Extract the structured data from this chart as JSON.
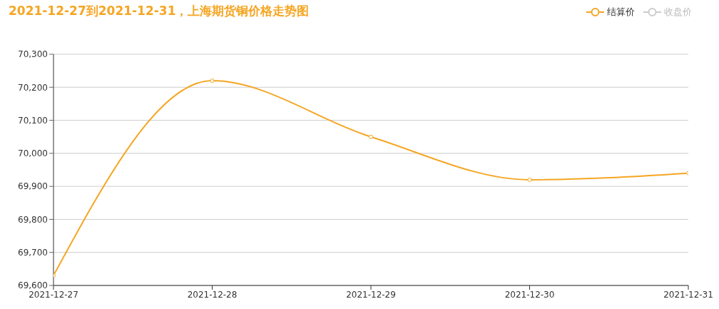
{
  "chart_data": {
    "type": "line",
    "title": "2021-12-27到2021-12-31，上海期货铜价格走势图",
    "categories": [
      "2021-12-27",
      "2021-12-28",
      "2021-12-29",
      "2021-12-30",
      "2021-12-31"
    ],
    "series": [
      {
        "name": "结算价",
        "color": "#f5a623",
        "values": [
          69630,
          70220,
          70050,
          69920,
          69940
        ]
      },
      {
        "name": "收盘价",
        "color": "#cccccc",
        "values": [
          null,
          null,
          null,
          null,
          null
        ]
      }
    ],
    "ylim": [
      69600,
      70300
    ],
    "yticks": [
      {
        "value": 69600,
        "label": "69,600"
      },
      {
        "value": 69700,
        "label": "69,700"
      },
      {
        "value": 69800,
        "label": "69,800"
      },
      {
        "value": 69900,
        "label": "69,900"
      },
      {
        "value": 70000,
        "label": "70,000"
      },
      {
        "value": 70100,
        "label": "70,100"
      },
      {
        "value": 70200,
        "label": "70,200"
      },
      {
        "value": 70300,
        "label": "70,300"
      }
    ],
    "grid": "y",
    "legend": "top right",
    "marker": "circle",
    "line_style": "solid"
  }
}
